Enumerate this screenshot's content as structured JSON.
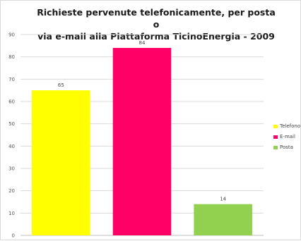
{
  "chart_data": {
    "type": "bar",
    "title": "Richieste pervenute telefonicamente, per posta o\nvia e-mail alla Piattaforma TicinoEnergia - 2009",
    "xlabel": "",
    "ylabel": "",
    "ylim": [
      0,
      90
    ],
    "yticks": [
      0,
      10,
      20,
      30,
      40,
      50,
      60,
      70,
      80,
      90
    ],
    "grid": true,
    "legend_position": "right",
    "series": [
      {
        "name": "Telefono",
        "value": 65,
        "color": "#ffff00"
      },
      {
        "name": "E-mail",
        "value": 84,
        "color": "#ff0066"
      },
      {
        "name": "Posta",
        "value": 14,
        "color": "#92d050"
      }
    ]
  }
}
